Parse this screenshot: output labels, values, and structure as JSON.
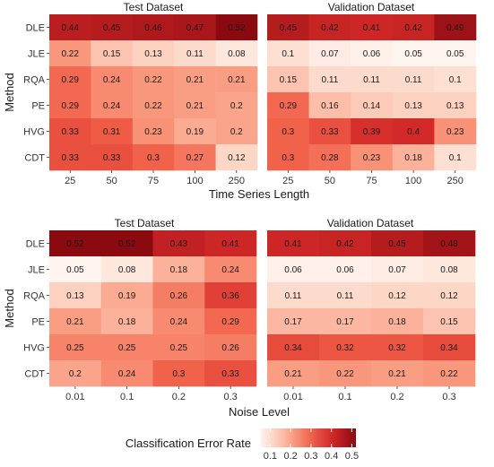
{
  "chart_data": [
    {
      "type": "heatmap",
      "title": "Test Dataset",
      "xlabel": "Time Series Length",
      "ylabel": "Method",
      "x": [
        "25",
        "50",
        "75",
        "100",
        "250"
      ],
      "y": [
        "DLE",
        "JLE",
        "RQA",
        "PE",
        "HVG",
        "CDT"
      ],
      "values": [
        [
          0.44,
          0.45,
          0.46,
          0.47,
          0.52
        ],
        [
          0.22,
          0.15,
          0.13,
          0.11,
          0.08
        ],
        [
          0.29,
          0.24,
          0.22,
          0.21,
          0.21
        ],
        [
          0.29,
          0.24,
          0.22,
          0.21,
          0.2
        ],
        [
          0.33,
          0.31,
          0.23,
          0.19,
          0.2
        ],
        [
          0.33,
          0.33,
          0.3,
          0.27,
          0.12
        ]
      ]
    },
    {
      "type": "heatmap",
      "title": "Validation Dataset",
      "xlabel": "Time Series Length",
      "ylabel": "Method",
      "x": [
        "25",
        "50",
        "75",
        "100",
        "250"
      ],
      "y": [
        "DLE",
        "JLE",
        "RQA",
        "PE",
        "HVG",
        "CDT"
      ],
      "values": [
        [
          0.45,
          0.42,
          0.41,
          0.42,
          0.49
        ],
        [
          0.1,
          0.07,
          0.06,
          0.05,
          0.05
        ],
        [
          0.15,
          0.11,
          0.11,
          0.11,
          0.1
        ],
        [
          0.29,
          0.16,
          0.14,
          0.13,
          0.13
        ],
        [
          0.3,
          0.33,
          0.39,
          0.4,
          0.23
        ],
        [
          0.3,
          0.28,
          0.23,
          0.18,
          0.1
        ]
      ]
    },
    {
      "type": "heatmap",
      "title": "Test Dataset",
      "xlabel": "Noise Level",
      "ylabel": "Method",
      "x": [
        "0.01",
        "0.1",
        "0.2",
        "0.3"
      ],
      "y": [
        "DLE",
        "JLE",
        "RQA",
        "PE",
        "HVG",
        "CDT"
      ],
      "values": [
        [
          0.52,
          0.52,
          0.43,
          0.41
        ],
        [
          0.05,
          0.08,
          0.18,
          0.24
        ],
        [
          0.13,
          0.19,
          0.26,
          0.36
        ],
        [
          0.21,
          0.18,
          0.24,
          0.29
        ],
        [
          0.25,
          0.25,
          0.25,
          0.26
        ],
        [
          0.2,
          0.24,
          0.3,
          0.33
        ]
      ]
    },
    {
      "type": "heatmap",
      "title": "Validation Dataset",
      "xlabel": "Noise Level",
      "ylabel": "Method",
      "x": [
        "0.01",
        "0.1",
        "0.2",
        "0.3"
      ],
      "y": [
        "DLE",
        "JLE",
        "RQA",
        "PE",
        "HVG",
        "CDT"
      ],
      "values": [
        [
          0.41,
          0.42,
          0.45,
          0.48
        ],
        [
          0.06,
          0.06,
          0.07,
          0.08
        ],
        [
          0.11,
          0.11,
          0.12,
          0.12
        ],
        [
          0.17,
          0.17,
          0.18,
          0.15
        ],
        [
          0.34,
          0.32,
          0.32,
          0.34
        ],
        [
          0.21,
          0.22,
          0.21,
          0.22
        ]
      ]
    }
  ],
  "legend": {
    "title": "Classification Error Rate",
    "ticks": [
      "0.1",
      "0.2",
      "0.3",
      "0.4",
      "0.5"
    ],
    "range": [
      0.05,
      0.52
    ],
    "color_low": "#fff5f0",
    "color_high": "#8b0a10"
  },
  "panel_titles": {
    "top_left": "Test Dataset",
    "top_right": "Validation Dataset",
    "bottom_left": "Test Dataset",
    "bottom_right": "Validation Dataset"
  },
  "axis_titles": {
    "top_x": "Time Series Length",
    "bottom_x": "Noise Level",
    "top_y": "Method",
    "bottom_y": "Method"
  }
}
